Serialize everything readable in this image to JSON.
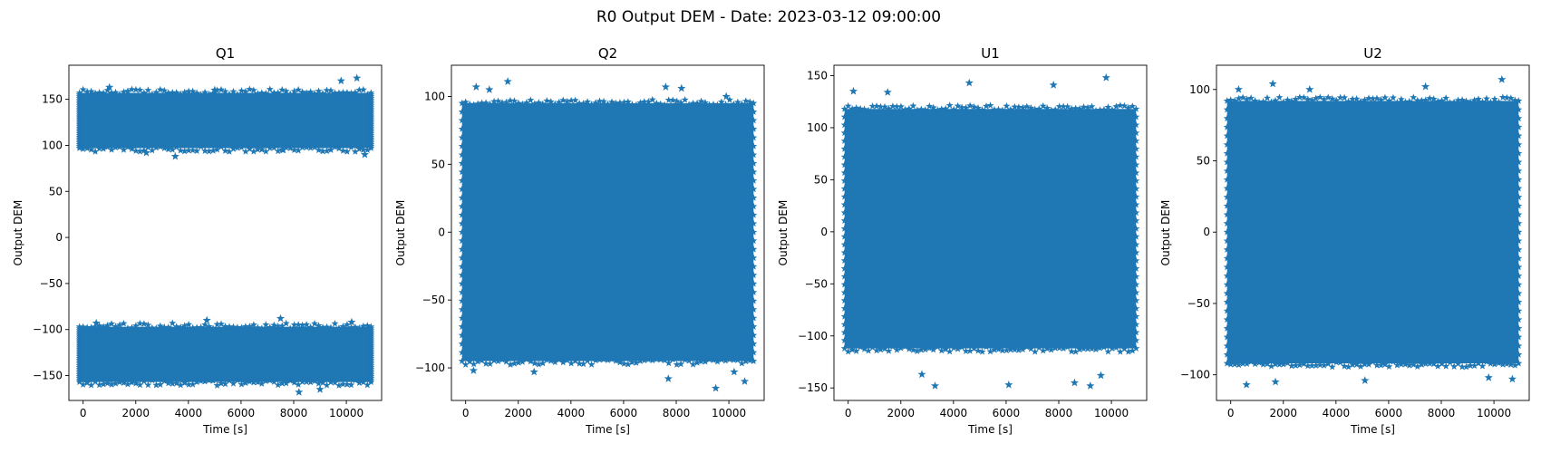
{
  "figure": {
    "title": "R0 Output DEM - Date: 2023-03-12 09:00:00"
  },
  "colors": {
    "series": "#1f77b4",
    "axes": "#000000",
    "background": "#ffffff"
  },
  "chart_data": [
    {
      "type": "scatter",
      "title": "Q1",
      "xlabel": "Time [s]",
      "ylabel": "Output DEM",
      "marker": "star",
      "grid": false,
      "xlim": [
        -540,
        11340
      ],
      "ylim": [
        -177,
        187
      ],
      "xticks": [
        0,
        2000,
        4000,
        6000,
        8000,
        10000
      ],
      "yticks": [
        -150,
        -100,
        -50,
        0,
        50,
        100,
        150
      ],
      "x_range": [
        0,
        10800
      ],
      "bands": [
        {
          "y_low": 97,
          "y_high": 157
        },
        {
          "y_low": -157,
          "y_high": -97
        }
      ],
      "outliers": [
        [
          1000,
          163
        ],
        [
          2400,
          92
        ],
        [
          3500,
          88
        ],
        [
          5000,
          160
        ],
        [
          7600,
          95
        ],
        [
          9800,
          170
        ],
        [
          10400,
          173
        ],
        [
          10700,
          90
        ],
        [
          500,
          -93
        ],
        [
          4700,
          -90
        ],
        [
          7500,
          -88
        ],
        [
          8200,
          -168
        ],
        [
          9000,
          -165
        ],
        [
          10200,
          -92
        ]
      ]
    },
    {
      "type": "scatter",
      "title": "Q2",
      "xlabel": "Time [s]",
      "ylabel": "Output DEM",
      "marker": "star",
      "grid": false,
      "xlim": [
        -540,
        11340
      ],
      "ylim": [
        -124,
        123
      ],
      "xticks": [
        0,
        2000,
        4000,
        6000,
        8000,
        10000
      ],
      "yticks": [
        -100,
        -50,
        0,
        50,
        100
      ],
      "x_range": [
        0,
        10800
      ],
      "bands": [
        {
          "y_low": -95,
          "y_high": 95
        }
      ],
      "outliers": [
        [
          400,
          107
        ],
        [
          900,
          105
        ],
        [
          1600,
          111
        ],
        [
          7600,
          107
        ],
        [
          8200,
          106
        ],
        [
          9900,
          100
        ],
        [
          300,
          -102
        ],
        [
          2600,
          -103
        ],
        [
          7700,
          -108
        ],
        [
          9500,
          -115
        ],
        [
          10600,
          -110
        ],
        [
          10200,
          -103
        ]
      ]
    },
    {
      "type": "scatter",
      "title": "U1",
      "xlabel": "Time [s]",
      "ylabel": "Output DEM",
      "marker": "star",
      "grid": false,
      "xlim": [
        -540,
        11340
      ],
      "ylim": [
        -162,
        160
      ],
      "xticks": [
        0,
        2000,
        4000,
        6000,
        8000,
        10000
      ],
      "yticks": [
        -150,
        -100,
        -50,
        0,
        50,
        100,
        150
      ],
      "x_range": [
        0,
        10800
      ],
      "bands": [
        {
          "y_low": -112,
          "y_high": 118
        }
      ],
      "outliers": [
        [
          200,
          135
        ],
        [
          1500,
          134
        ],
        [
          4600,
          143
        ],
        [
          7800,
          141
        ],
        [
          9800,
          148
        ],
        [
          3300,
          -148
        ],
        [
          2800,
          -137
        ],
        [
          6100,
          -147
        ],
        [
          8600,
          -145
        ],
        [
          9200,
          -148
        ],
        [
          9600,
          -138
        ]
      ]
    },
    {
      "type": "scatter",
      "title": "U2",
      "xlabel": "Time [s]",
      "ylabel": "Output DEM",
      "marker": "star",
      "grid": false,
      "xlim": [
        -540,
        11340
      ],
      "ylim": [
        -118,
        117
      ],
      "xticks": [
        0,
        2000,
        4000,
        6000,
        8000,
        10000
      ],
      "yticks": [
        -100,
        -50,
        0,
        50,
        100
      ],
      "x_range": [
        0,
        10800
      ],
      "bands": [
        {
          "y_low": -92,
          "y_high": 92
        }
      ],
      "outliers": [
        [
          300,
          100
        ],
        [
          1600,
          104
        ],
        [
          3000,
          100
        ],
        [
          7400,
          102
        ],
        [
          10300,
          107
        ],
        [
          600,
          -107
        ],
        [
          1700,
          -105
        ],
        [
          5100,
          -104
        ],
        [
          9800,
          -102
        ],
        [
          10700,
          -103
        ]
      ]
    }
  ]
}
